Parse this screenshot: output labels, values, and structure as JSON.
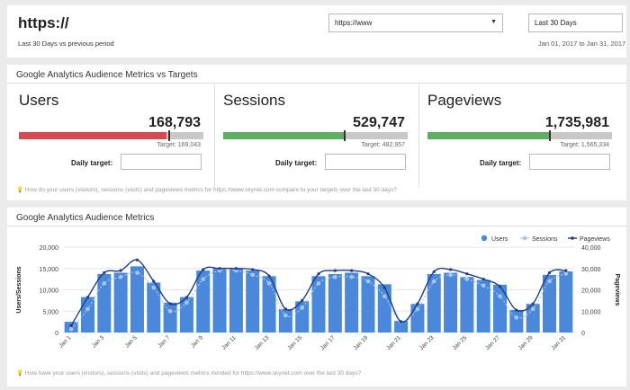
{
  "header": {
    "title": "https://",
    "subtitle": "Last 30 Days vs previous period",
    "url_select": "https://www",
    "period_select": "Last 30 Days",
    "date_range": "Jan 01, 2017  to Jan 31, 2017"
  },
  "targets_panel": {
    "title": "Google Analytics Audience Metrics vs Targets",
    "daily_target_label": "Daily target:",
    "metrics": [
      {
        "name": "Users",
        "value": "168,793",
        "target": "Target: 169,043",
        "progress": 0.998,
        "color": "#d9474f"
      },
      {
        "name": "Sessions",
        "value": "529,747",
        "target": "Target: 482,957",
        "progress": 1.097,
        "color": "#5cb160"
      },
      {
        "name": "Pageviews",
        "value": "1,735,981",
        "target": "Target: 1,565,334",
        "progress": 1.109,
        "color": "#5cb160"
      }
    ],
    "footnote": "How do your users (visitors), sessions (visits) and pageviews metrics for https://www.skynet.com compare to your targets over the last 30 days?"
  },
  "chart_panel": {
    "title": "Google Analytics Audience Metrics",
    "footnote": "How have your users (visitors), sessions (visits) and pageviews metrics trended for https://www.skynet.com over the last 30 days?"
  },
  "chart_data": {
    "type": "bar",
    "x_ticks": [
      "Jan 1",
      "Jan 3",
      "Jan 5",
      "Jan 7",
      "Jan 9",
      "Jan 11",
      "Jan 13",
      "Jan 15",
      "Jan 17",
      "Jan 19",
      "Jan 21",
      "Jan 23",
      "Jan 25",
      "Jan 27",
      "Jan 29",
      "Jan 31"
    ],
    "ylabel": "Users/Sessions",
    "y2label": "Pageviews",
    "ylim": [
      0,
      20000
    ],
    "y2lim": [
      0,
      40000
    ],
    "y_ticks": [
      "0",
      "5,000",
      "10,000",
      "15,000",
      "20,000"
    ],
    "y2_ticks": [
      "0",
      "10,000",
      "20,000",
      "30,000",
      "40,000"
    ],
    "legend": [
      "Users",
      "Sessions",
      "Pageviews"
    ],
    "legend_position": "top-right",
    "series": [
      {
        "name": "Users",
        "type": "bar",
        "color": "#4a88dc",
        "values": [
          2500,
          8300,
          13700,
          14000,
          15500,
          11700,
          7000,
          8300,
          14500,
          15000,
          15000,
          14500,
          13200,
          5500,
          7300,
          13200,
          13700,
          14000,
          13200,
          11300,
          2700,
          6700,
          13700,
          14000,
          13000,
          12300,
          11200,
          5300,
          6700,
          13500,
          14300
        ]
      },
      {
        "name": "Sessions",
        "type": "line",
        "color": "#a9c6ec",
        "values": [
          800,
          5500,
          11500,
          13000,
          14000,
          10500,
          5000,
          7000,
          12500,
          14500,
          14500,
          13500,
          11500,
          4000,
          5800,
          11500,
          13000,
          13000,
          12000,
          8500,
          2500,
          5500,
          12000,
          13500,
          12500,
          11000,
          8500,
          3500,
          5500,
          12000,
          13800
        ]
      },
      {
        "name": "Pageviews",
        "type": "line",
        "color": "#1f3d8a",
        "values": [
          3200,
          16500,
          28000,
          29000,
          34000,
          24000,
          13500,
          16500,
          29500,
          30000,
          30000,
          29500,
          26500,
          11000,
          15000,
          27500,
          29000,
          29000,
          27500,
          21000,
          5000,
          13500,
          28500,
          29500,
          27500,
          25000,
          21500,
          10500,
          13500,
          28000,
          29000
        ]
      }
    ]
  }
}
